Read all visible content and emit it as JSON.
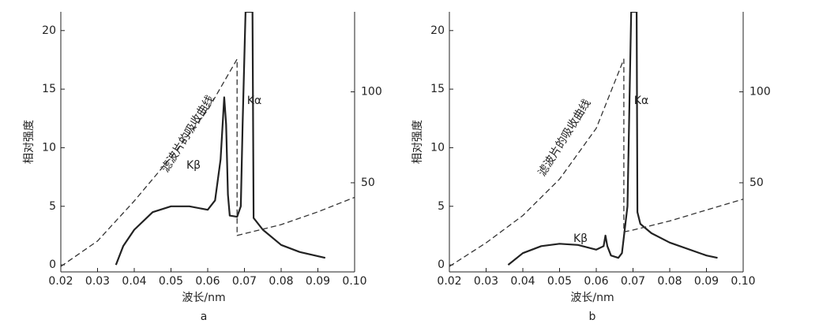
{
  "chart_data": [
    {
      "type": "line",
      "xlabel": "波长/nm",
      "ylabel": "相对强度",
      "caption": "a",
      "annotations": [
        "Kα",
        "Kβ",
        "滤波片的吸收曲线"
      ],
      "xlim": [
        0.02,
        0.1
      ],
      "xticks": [
        0.02,
        0.03,
        0.04,
        0.05,
        0.06,
        0.07,
        0.08,
        0.09,
        {
          "value": 0.1,
          "label": "0.10"
        }
      ],
      "ylim": [
        -0.6,
        21.6
      ],
      "yticks": [
        0,
        5,
        10,
        15,
        20
      ],
      "y2lim": [
        1,
        144
      ],
      "y2ticks": [
        50,
        100
      ],
      "series": [
        {
          "color": "#222222",
          "dash": false,
          "x": [
            0.035,
            0.037,
            0.04,
            0.045,
            0.05,
            0.055,
            0.06,
            0.062,
            0.0635,
            0.0645,
            0.065,
            0.0655,
            0.066,
            0.068,
            0.069,
            0.0695,
            0.0703,
            0.0722,
            0.0725,
            0.075,
            0.08,
            0.085,
            0.092
          ],
          "values": [
            0,
            1.6,
            3,
            4.5,
            5,
            5,
            4.7,
            5.5,
            9,
            14.3,
            12,
            6,
            4.2,
            4.1,
            5,
            12,
            21.6,
            21.6,
            4,
            3,
            1.7,
            1.1,
            0.6
          ]
        },
        {
          "color": "#333333",
          "dash": true,
          "axis": "y2",
          "x": [
            0.02,
            0.03,
            0.04,
            0.05,
            0.06,
            0.068,
            0.068,
            0.07,
            0.08,
            0.09,
            0.1
          ],
          "values": [
            4,
            18,
            40,
            64,
            90,
            118,
            21,
            22,
            27,
            34,
            42
          ]
        }
      ]
    },
    {
      "type": "line",
      "xlabel": "波长/nm",
      "ylabel": "相对强度",
      "caption": "b",
      "annotations": [
        "Kα",
        "Kβ",
        "滤波片的吸收曲线"
      ],
      "xlim": [
        0.02,
        0.1
      ],
      "xticks": [
        0.02,
        0.03,
        0.04,
        0.05,
        0.06,
        0.07,
        0.08,
        0.09,
        {
          "value": 0.1,
          "label": "0.10"
        }
      ],
      "ylim": [
        -0.6,
        21.6
      ],
      "yticks": [
        0,
        5,
        10,
        15,
        20
      ],
      "y2lim": [
        1,
        144
      ],
      "y2ticks": [
        50,
        100
      ],
      "series": [
        {
          "color": "#222222",
          "dash": false,
          "x": [
            0.036,
            0.04,
            0.045,
            0.05,
            0.055,
            0.06,
            0.062,
            0.0625,
            0.063,
            0.064,
            0.066,
            0.067,
            0.0685,
            0.0695,
            0.071,
            0.0712,
            0.072,
            0.075,
            0.08,
            0.09,
            0.093
          ],
          "values": [
            0,
            1,
            1.6,
            1.8,
            1.7,
            1.3,
            1.6,
            2.5,
            1.6,
            0.8,
            0.6,
            1,
            5,
            21.6,
            21.6,
            4.5,
            3.5,
            2.7,
            1.9,
            0.8,
            0.6
          ]
        },
        {
          "color": "#333333",
          "dash": true,
          "axis": "y2",
          "x": [
            0.02,
            0.03,
            0.04,
            0.05,
            0.06,
            0.0675,
            0.0675,
            0.07,
            0.08,
            0.09,
            0.1
          ],
          "values": [
            4,
            17,
            32,
            52,
            80,
            118,
            23,
            24,
            29,
            35,
            41
          ]
        }
      ]
    }
  ]
}
